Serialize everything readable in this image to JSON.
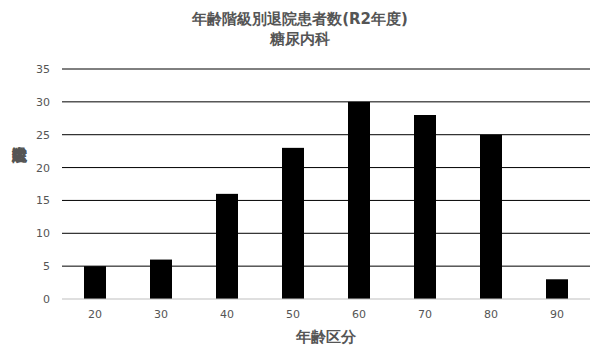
{
  "chart_data": {
    "type": "bar",
    "title": "年齢階級別退院患者数(R2年度)",
    "subtitle": "糖尿内科",
    "x_label": "年齢区分",
    "y_label": "退院患者数",
    "categories": [
      "20",
      "30",
      "40",
      "50",
      "60",
      "70",
      "80",
      "90"
    ],
    "values": [
      5,
      6,
      16,
      23,
      30,
      28,
      25,
      3
    ],
    "color": "#000000",
    "ylim": [
      0,
      35
    ],
    "yticks": [
      0,
      5,
      10,
      15,
      20,
      25,
      30,
      35
    ],
    "grid": true
  }
}
